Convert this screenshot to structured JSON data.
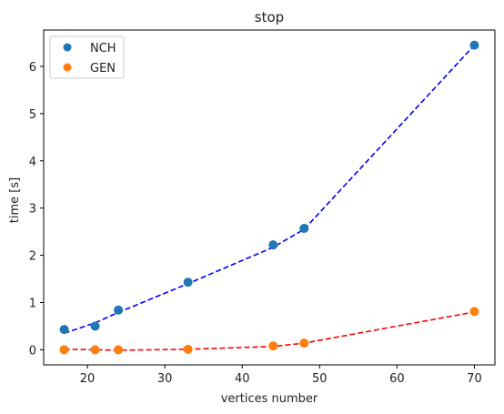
{
  "chart_data": {
    "type": "scatter",
    "title": "stop",
    "xlabel": "vertices number",
    "ylabel": "time [s]",
    "xlim": [
      14.35,
      72.65
    ],
    "ylim": [
      -0.32,
      6.77
    ],
    "xticks": [
      20,
      30,
      40,
      50,
      60,
      70
    ],
    "yticks": [
      0,
      1,
      2,
      3,
      4,
      5,
      6
    ],
    "legend_position": "top-left",
    "grid": false,
    "series": [
      {
        "name": "NCH",
        "marker_color": "#1f77b4",
        "fit_line_color": "#0000ff",
        "x": [
          17,
          21,
          24,
          33,
          44,
          48,
          70
        ],
        "y": [
          0.43,
          0.5,
          0.84,
          1.43,
          2.22,
          2.57,
          6.45
        ],
        "fit": [
          0.35,
          0.57,
          0.79,
          1.4,
          2.17,
          2.55,
          6.45
        ]
      },
      {
        "name": "GEN",
        "marker_color": "#ff7f0e",
        "fit_line_color": "#ff0000",
        "x": [
          17,
          21,
          24,
          33,
          44,
          48,
          70
        ],
        "y": [
          0.0,
          0.0,
          0.0,
          0.01,
          0.08,
          0.14,
          0.81
        ],
        "fit": [
          0.01,
          0.0,
          -0.01,
          0.01,
          0.07,
          0.14,
          0.8
        ]
      }
    ]
  }
}
